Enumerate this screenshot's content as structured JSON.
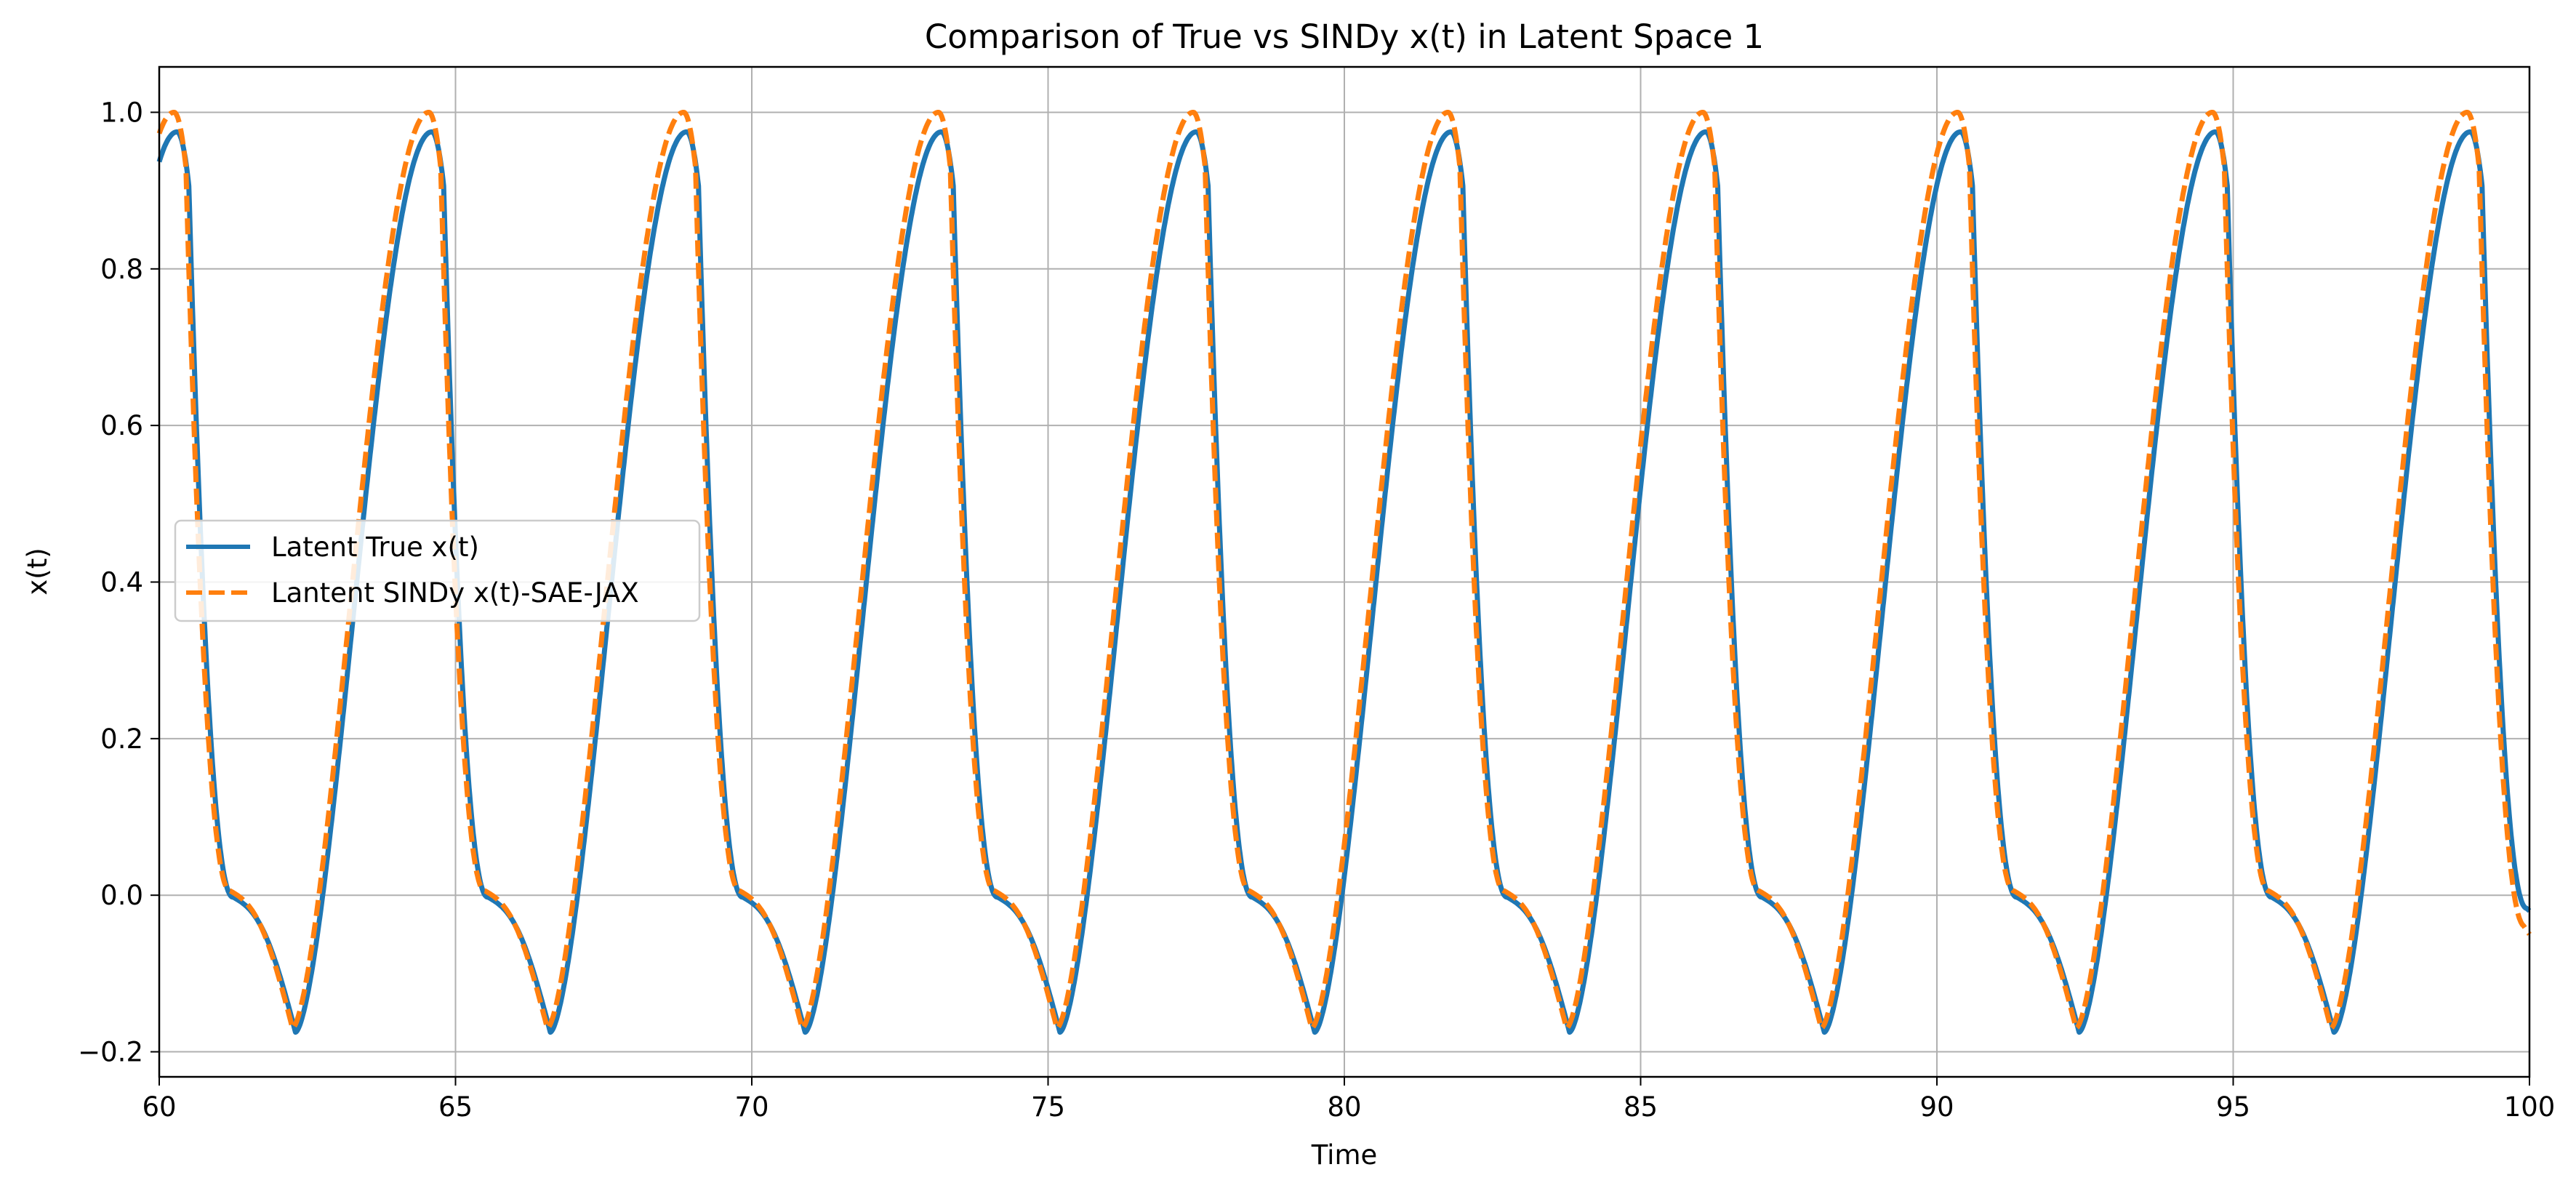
{
  "chart_data": {
    "type": "line",
    "title": "Comparison of True vs SINDy x(t) in Latent Space 1",
    "xlabel": "Time",
    "ylabel": "x(t)",
    "xlim": [
      60,
      100
    ],
    "ylim": [
      -0.232,
      1.058
    ],
    "xticks": [
      60,
      65,
      70,
      75,
      80,
      85,
      90,
      95,
      100
    ],
    "xtick_labels": [
      "60",
      "65",
      "70",
      "75",
      "80",
      "85",
      "90",
      "95",
      "100"
    ],
    "yticks": [
      -0.2,
      0.0,
      0.2,
      0.4,
      0.6,
      0.8,
      1.0
    ],
    "ytick_labels": [
      "−0.2",
      "0.0",
      "0.2",
      "0.4",
      "0.6",
      "0.8",
      "1.0"
    ],
    "grid": true,
    "legend_position": "center-left",
    "period": 4.3,
    "series": [
      {
        "name": "Latent True x(t)",
        "color": "#1f77b4",
        "style": "solid",
        "peaks": [
          {
            "x": 60.3,
            "y": 0.975
          },
          {
            "x": 64.6,
            "y": 0.975
          },
          {
            "x": 68.9,
            "y": 0.975
          },
          {
            "x": 73.2,
            "y": 0.975
          },
          {
            "x": 77.5,
            "y": 0.975
          },
          {
            "x": 81.8,
            "y": 0.975
          },
          {
            "x": 86.1,
            "y": 0.975
          },
          {
            "x": 90.4,
            "y": 0.975
          },
          {
            "x": 94.7,
            "y": 0.975
          },
          {
            "x": 99.0,
            "y": 0.975
          }
        ],
        "troughs": [
          {
            "x": 62.3,
            "y": -0.175
          },
          {
            "x": 66.6,
            "y": -0.175
          },
          {
            "x": 70.9,
            "y": -0.175
          },
          {
            "x": 75.2,
            "y": -0.175
          },
          {
            "x": 79.5,
            "y": -0.175
          },
          {
            "x": 83.8,
            "y": -0.175
          },
          {
            "x": 88.1,
            "y": -0.175
          },
          {
            "x": 92.4,
            "y": -0.175
          },
          {
            "x": 96.7,
            "y": -0.175
          }
        ],
        "end_value": -0.02
      },
      {
        "name": "Lantent SINDy x(t)-SAE-JAX",
        "color": "#ff7f0e",
        "style": "dashed",
        "peaks": [
          {
            "x": 60.25,
            "y": 1.0
          },
          {
            "x": 64.55,
            "y": 1.0
          },
          {
            "x": 68.85,
            "y": 1.0
          },
          {
            "x": 73.15,
            "y": 1.0
          },
          {
            "x": 77.45,
            "y": 1.0
          },
          {
            "x": 81.75,
            "y": 1.0
          },
          {
            "x": 86.05,
            "y": 1.0
          },
          {
            "x": 90.35,
            "y": 1.0
          },
          {
            "x": 94.65,
            "y": 1.0
          },
          {
            "x": 98.95,
            "y": 1.0
          }
        ],
        "troughs": [
          {
            "x": 62.2,
            "y": -0.17
          },
          {
            "x": 66.5,
            "y": -0.17
          },
          {
            "x": 70.8,
            "y": -0.17
          },
          {
            "x": 75.1,
            "y": -0.17
          },
          {
            "x": 79.4,
            "y": -0.17
          },
          {
            "x": 83.7,
            "y": -0.17
          },
          {
            "x": 88.0,
            "y": -0.17
          },
          {
            "x": 92.3,
            "y": -0.17
          },
          {
            "x": 96.6,
            "y": -0.17
          }
        ],
        "end_value": -0.05
      }
    ]
  }
}
